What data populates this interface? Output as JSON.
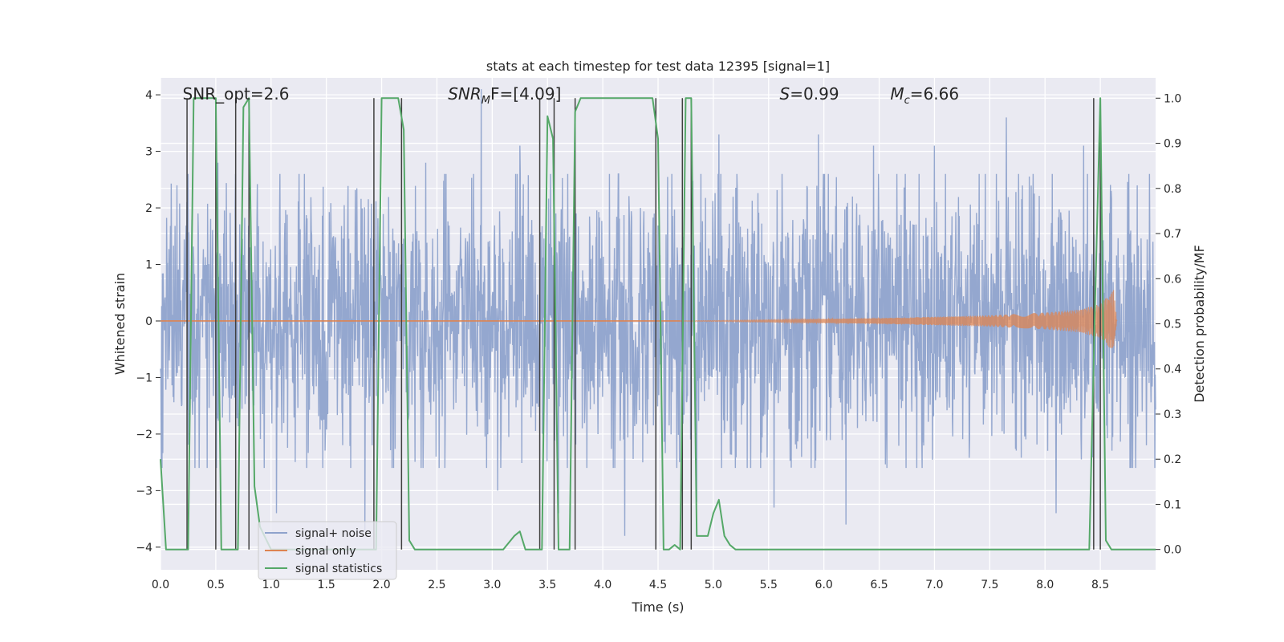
{
  "chart_data": {
    "type": "line",
    "title": "stats at each timestep for test data 12395 [signal=1]",
    "xlabel": "Time (s)",
    "ylabel": "Whitened strain",
    "y2label": "Detection probability/MF",
    "xlim": [
      0,
      9.0
    ],
    "ylim": [
      -4.4,
      4.3
    ],
    "y2lim": [
      -0.045,
      1.045
    ],
    "x_ticks": [
      0.0,
      0.5,
      1.0,
      1.5,
      2.0,
      2.5,
      3.0,
      3.5,
      4.0,
      4.5,
      5.0,
      5.5,
      6.0,
      6.5,
      7.0,
      7.5,
      8.0,
      8.5
    ],
    "x_tick_labels": [
      "0.0",
      "0.5",
      "1.0",
      "1.5",
      "2.0",
      "2.5",
      "3.0",
      "3.5",
      "4.0",
      "4.5",
      "5.0",
      "5.5",
      "6.0",
      "6.5",
      "7.0",
      "7.5",
      "8.0",
      "8.5"
    ],
    "y_ticks": [
      4,
      3,
      2,
      1,
      0,
      -1,
      -2,
      -3,
      -4
    ],
    "y_tick_labels": [
      "4",
      "3",
      "2",
      "1",
      "0",
      "−1",
      "−2",
      "−3",
      "−4"
    ],
    "y2_ticks": [
      1.0,
      0.9,
      0.8,
      0.7,
      0.6,
      0.5,
      0.4,
      0.3,
      0.2,
      0.1,
      0.0
    ],
    "y2_tick_labels": [
      "1.0",
      "0.9",
      "0.8",
      "0.7",
      "0.6",
      "0.5",
      "0.4",
      "0.3",
      "0.2",
      "0.1",
      "0.0"
    ],
    "grid": true,
    "legend_position": "bottom-left",
    "annotations": [
      {
        "id": "snr-opt",
        "x": 0.2,
        "text": "SNR_opt=2.6"
      },
      {
        "id": "snr-mf",
        "x": 2.6,
        "base": "SNR",
        "sub": "M",
        "rest": "F=[4.09]"
      },
      {
        "id": "s-stat",
        "x": 5.6,
        "base": "S",
        "sub": "",
        "rest": "=0.99"
      },
      {
        "id": "mc-stat",
        "x": 6.6,
        "base": "M",
        "sub": "c",
        "rest": "=6.66"
      }
    ],
    "series": [
      {
        "name": "signal+ noise",
        "color": "#8fa3cc",
        "kind": "noise",
        "x_range": [
          0,
          9.0
        ],
        "amplitude_envelope": 1.6,
        "peak_values": [
          [
            0.15,
            2.4
          ],
          [
            0.35,
            -2.6
          ],
          [
            0.52,
            2.8
          ],
          [
            0.8,
            -2.9
          ],
          [
            1.05,
            -3.4
          ],
          [
            1.3,
            2.6
          ],
          [
            1.85,
            -3.7
          ],
          [
            2.4,
            2.8
          ],
          [
            2.9,
            4.1
          ],
          [
            3.05,
            -3.0
          ],
          [
            3.25,
            3.1
          ],
          [
            3.6,
            -3.4
          ],
          [
            4.2,
            -3.8
          ],
          [
            4.85,
            -3.2
          ],
          [
            5.05,
            3.3
          ],
          [
            5.55,
            -3.3
          ],
          [
            5.95,
            3.3
          ],
          [
            6.2,
            -3.6
          ],
          [
            6.45,
            3.1
          ],
          [
            7.0,
            3.1
          ],
          [
            7.65,
            3.6
          ],
          [
            8.1,
            -3.4
          ],
          [
            8.35,
            3.1
          ],
          [
            8.6,
            2.3
          ]
        ]
      },
      {
        "name": "signal only",
        "color": "#dd8452",
        "kind": "chirp",
        "x_range": [
          4.7,
          8.65
        ],
        "amplitude_points": [
          [
            4.7,
            0.0
          ],
          [
            5.5,
            0.02
          ],
          [
            6.5,
            0.05
          ],
          [
            7.5,
            0.1
          ],
          [
            8.0,
            0.15
          ],
          [
            8.3,
            0.2
          ],
          [
            8.5,
            0.3
          ],
          [
            8.62,
            0.55
          ],
          [
            8.65,
            0.0
          ]
        ]
      },
      {
        "name": "signal statistics",
        "color": "#55a868",
        "kind": "line",
        "axis": "right",
        "x": [
          0.0,
          0.05,
          0.15,
          0.25,
          0.3,
          0.35,
          0.45,
          0.5,
          0.55,
          0.6,
          0.7,
          0.75,
          0.8,
          0.85,
          0.9,
          1.0,
          1.1,
          1.3,
          1.5,
          1.7,
          1.9,
          1.95,
          2.0,
          2.05,
          2.15,
          2.2,
          2.25,
          2.3,
          2.5,
          2.8,
          3.0,
          3.1,
          3.2,
          3.25,
          3.3,
          3.35,
          3.45,
          3.5,
          3.55,
          3.6,
          3.7,
          3.75,
          3.8,
          3.9,
          4.0,
          4.3,
          4.45,
          4.5,
          4.55,
          4.6,
          4.65,
          4.7,
          4.75,
          4.8,
          4.85,
          4.95,
          5.0,
          5.05,
          5.1,
          5.15,
          5.2,
          5.3,
          5.5,
          6.0,
          7.0,
          8.0,
          8.4,
          8.45,
          8.5,
          8.55,
          8.6,
          8.7,
          9.0
        ],
        "y": [
          0.2,
          0.0,
          0.0,
          0.0,
          1.0,
          1.0,
          1.0,
          1.0,
          0.0,
          0.0,
          0.0,
          0.98,
          1.0,
          0.14,
          0.05,
          0.0,
          0.0,
          0.0,
          0.0,
          0.0,
          0.0,
          0.0,
          1.0,
          1.0,
          1.0,
          0.93,
          0.02,
          0.0,
          0.0,
          0.0,
          0.0,
          0.0,
          0.03,
          0.04,
          0.0,
          0.0,
          0.0,
          0.96,
          0.91,
          0.0,
          0.0,
          0.97,
          1.0,
          1.0,
          1.0,
          1.0,
          1.0,
          0.91,
          0.0,
          0.0,
          0.01,
          0.0,
          1.0,
          1.0,
          0.03,
          0.03,
          0.08,
          0.11,
          0.03,
          0.01,
          0.0,
          0.0,
          0.0,
          0.0,
          0.0,
          0.0,
          0.0,
          0.52,
          1.0,
          0.02,
          0.0,
          0.0,
          0.0
        ]
      }
    ],
    "event_lines": {
      "color": "#404040",
      "x": [
        0.24,
        0.5,
        0.68,
        0.8,
        1.93,
        2.18,
        3.43,
        3.56,
        3.75,
        4.48,
        4.72,
        4.8,
        8.44,
        8.5
      ]
    }
  }
}
